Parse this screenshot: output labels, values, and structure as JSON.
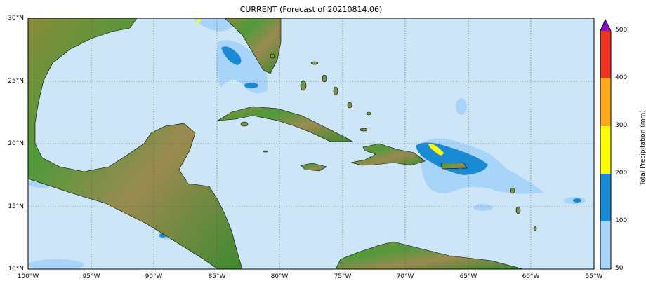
{
  "title": "CURRENT (Forecast of 20210814.06)",
  "map": {
    "lon_range": [
      -100,
      -55
    ],
    "lat_range": [
      10,
      30
    ],
    "x_ticks": [
      "100°W",
      "95°W",
      "90°W",
      "85°W",
      "80°W",
      "75°W",
      "70°W",
      "65°W",
      "60°W",
      "55°W"
    ],
    "y_ticks": [
      "30°N",
      "25°N",
      "20°N",
      "15°N",
      "10°N"
    ],
    "grid": true,
    "colors": {
      "ocean": "#cde6f7",
      "land": "#4f9a3a"
    }
  },
  "colorbar": {
    "label": "Total Precipitation (mm)",
    "ticks": [
      "500",
      "400",
      "300",
      "200",
      "100",
      "50"
    ],
    "levels": [
      50,
      100,
      200,
      300,
      400,
      500
    ],
    "colors": [
      "#a9d4fa",
      "#1a8ad4",
      "#ffff00",
      "#fbaa1e",
      "#ee3524"
    ],
    "extend_color": "#8a10c8"
  }
}
